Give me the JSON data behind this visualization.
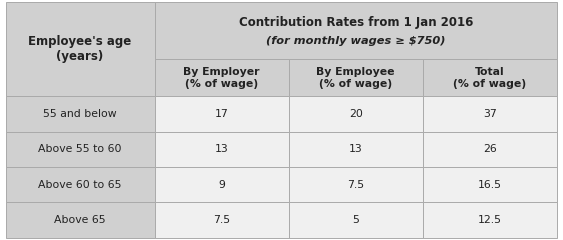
{
  "header_row1_col1": "Employee's age\n(years)",
  "line1_main": "Contribution Rates from 1 Jan 2016",
  "line2_main": "(for monthly wages ≥ $750)",
  "header_row2": [
    "By Employer\n(% of wage)",
    "By Employee\n(% of wage)",
    "Total\n(% of wage)"
  ],
  "rows": [
    [
      "55 and below",
      "17",
      "20",
      "37"
    ],
    [
      "Above 55 to 60",
      "13",
      "13",
      "26"
    ],
    [
      "Above 60 to 65",
      "9",
      "7.5",
      "16.5"
    ],
    [
      "Above 65",
      "7.5",
      "5",
      "12.5"
    ]
  ],
  "header_bg": "#d0d0d0",
  "data_col1_bg": "#d0d0d0",
  "data_cols_bg": "#f0f0f0",
  "white_bg": "#ffffff",
  "border_color": "#aaaaaa",
  "text_color": "#222222",
  "figsize": [
    5.63,
    2.4
  ],
  "dpi": 100
}
